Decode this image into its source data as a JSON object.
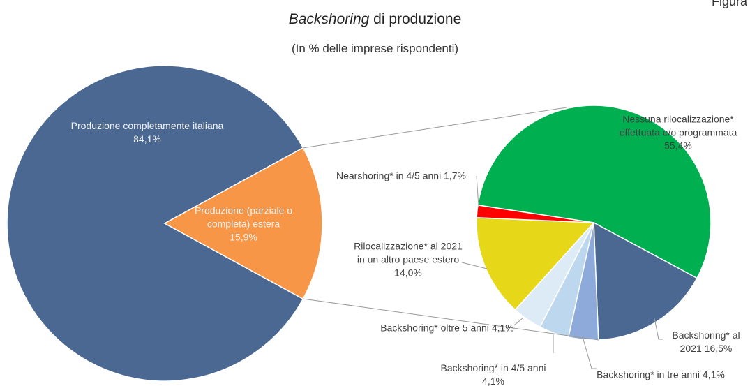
{
  "chart_data": {
    "type": "pie-of-pie",
    "corner_label": "Figura",
    "title": {
      "emphasis": "Backshoring",
      "text": "di produzione"
    },
    "subtitle": "(In % delle imprese rispondenti)",
    "pies": [
      {
        "categories": [
          "Produzione completamente italiana",
          "Produzione (parziale o completa) estera"
        ],
        "values": [
          84.1,
          15.9
        ],
        "value_labels": [
          "84,1%",
          "15,9%"
        ],
        "colors": [
          "#4a6891",
          "#f79646"
        ]
      },
      {
        "categories": [
          "Nessuna rilocalizzazione* effettuata e/o programmata",
          "Backshoring* al 2021",
          "Backshoring* in tre anni",
          "Backshoring* in 4/5 anni",
          "Backshoring* oltre 5 anni",
          "Rilocalizzazione* al 2021 in un altro paese estero",
          "Nearshoring* in 4/5 anni"
        ],
        "values": [
          55.4,
          16.5,
          4.1,
          4.1,
          4.1,
          14.0,
          1.7
        ],
        "value_labels": [
          "55,4%",
          "16,5%",
          "4,1%",
          "4,1%",
          "4,1%",
          "14,0%",
          "1,7%"
        ],
        "colors": [
          "#00b050",
          "#4a6891",
          "#8eaadb",
          "#bdd7ee",
          "#ddebf7",
          "#e6d819",
          "#ff0000"
        ]
      }
    ]
  }
}
